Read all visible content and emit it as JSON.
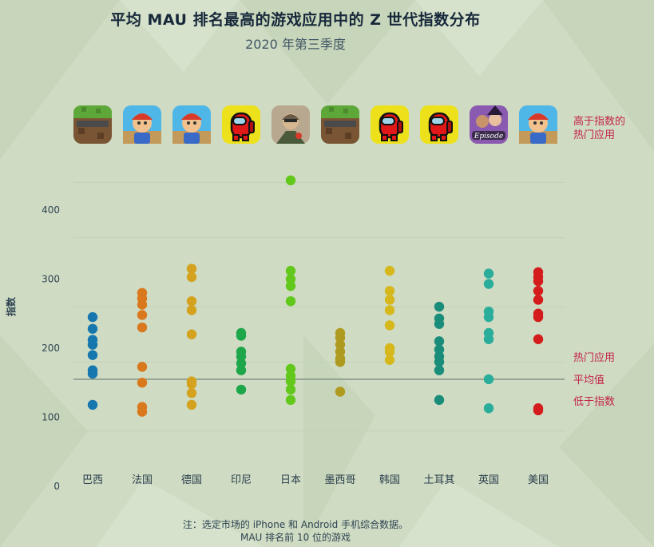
{
  "title": "平均 MAU 排名最高的游戏应用中的 Z 世代指数分布",
  "subtitle": "2020 年第三季度",
  "note": {
    "line1": "注：选定市场的 iPhone 和 Android 手机综合数据。",
    "line2": "MAU 排名前 10 位的游戏"
  },
  "chart_data": {
    "type": "scatter",
    "ylabel": "指数",
    "ylim": [
      0,
      460
    ],
    "yticks": [
      0,
      100,
      200,
      300,
      400
    ],
    "reference_line": {
      "value": 155,
      "label": "平均值"
    },
    "annotations": {
      "top_apps": "高于指数的\n热门应用",
      "above": "热门应用",
      "below": "低于指数"
    },
    "categories": [
      "巴西",
      "法国",
      "德国",
      "印尼",
      "日本",
      "墨西哥",
      "韩国",
      "土耳其",
      "英国",
      "美国"
    ],
    "colors": [
      "#1676ae",
      "#d9781c",
      "#d4a21e",
      "#1ea64a",
      "#63c81c",
      "#ae9a1e",
      "#d6b81c",
      "#1a8c7a",
      "#2aad9a",
      "#d41c1c"
    ],
    "icons": [
      "minecraft-icon",
      "subway-surfers-icon",
      "subway-surfers-icon",
      "among-us-icon",
      "pubg-mobile-icon",
      "minecraft-icon",
      "among-us-icon",
      "among-us-icon",
      "episode-icon",
      "subway-surfers-icon"
    ],
    "values": [
      [
        245,
        228,
        212,
        205,
        190,
        168,
        163,
        118
      ],
      [
        280,
        272,
        263,
        248,
        230,
        173,
        150,
        115,
        108
      ],
      [
        315,
        303,
        268,
        255,
        220,
        152,
        148,
        135,
        118
      ],
      [
        222,
        218,
        195,
        188,
        178,
        168,
        140
      ],
      [
        443,
        312,
        300,
        290,
        268,
        170,
        160,
        152,
        140,
        125
      ],
      [
        222,
        215,
        205,
        195,
        185,
        180,
        137
      ],
      [
        312,
        283,
        270,
        255,
        233,
        200,
        195,
        183
      ],
      [
        260,
        243,
        235,
        210,
        198,
        188,
        180,
        168,
        125
      ],
      [
        308,
        293,
        253,
        245,
        222,
        213,
        155,
        113
      ],
      [
        310,
        303,
        297,
        283,
        270,
        250,
        245,
        213,
        113,
        110
      ]
    ]
  }
}
